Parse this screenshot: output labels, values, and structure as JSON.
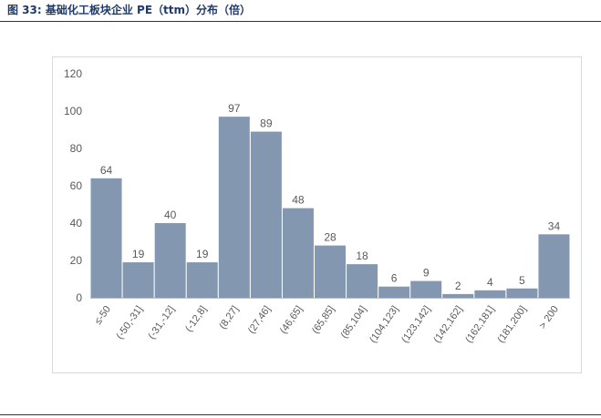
{
  "header": {
    "title": "图 33: 基础化工板块企业 PE（ttm）分布（倍）"
  },
  "chart_data": {
    "type": "bar",
    "title": "",
    "xlabel": "",
    "ylabel": "",
    "ylim": [
      0,
      120
    ],
    "yticks": [
      0,
      20,
      40,
      60,
      80,
      100,
      120
    ],
    "grid": false,
    "legend": "none",
    "bar_color": "#8497b0",
    "categories": [
      "≤-50",
      "(-50,-31]",
      "(-31,-12]",
      "(-12,8]",
      "(8,27]",
      "(27,46]",
      "(46,65]",
      "(65,85]",
      "(85,104]",
      "(104,123]",
      "(123,142]",
      "(142,162]",
      "(162,181]",
      "(181,200]",
      "> 200"
    ],
    "values": [
      64,
      19,
      40,
      19,
      97,
      89,
      48,
      28,
      18,
      6,
      9,
      2,
      4,
      5,
      34
    ]
  }
}
